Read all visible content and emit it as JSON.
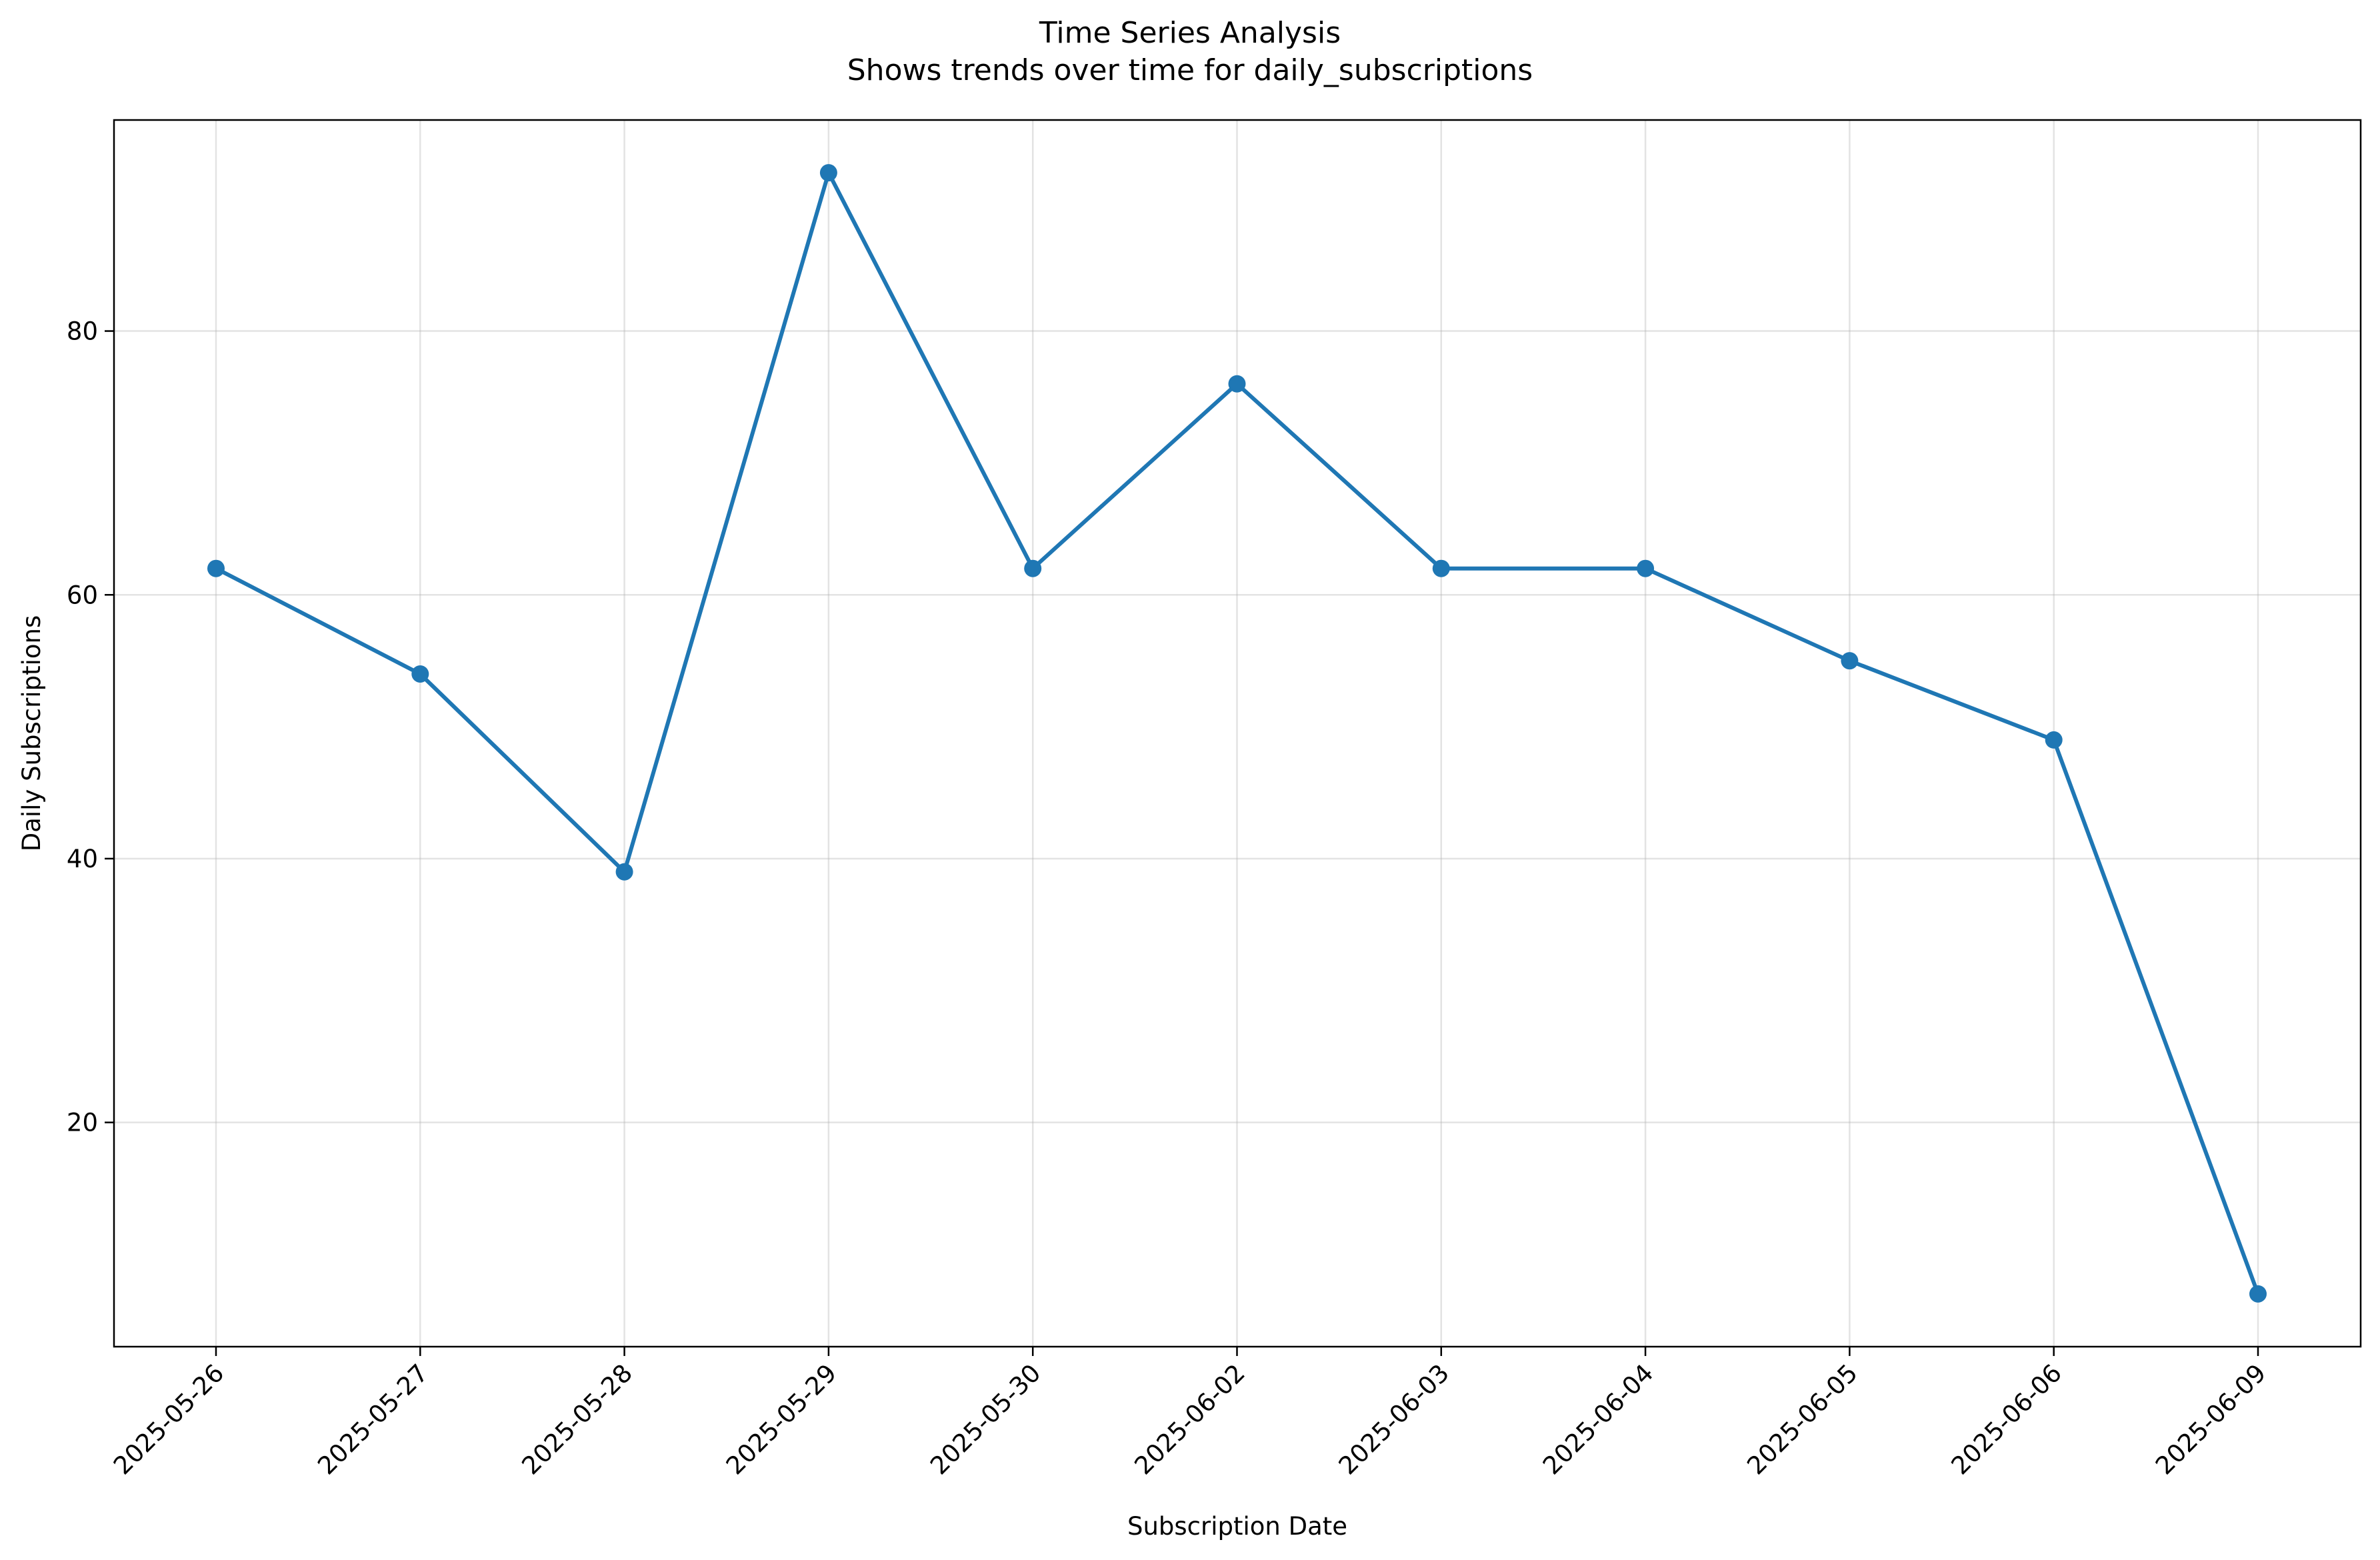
{
  "chart_data": {
    "type": "line",
    "title": "Time Series Analysis",
    "subtitle": "Shows trends over time for daily_subscriptions",
    "xlabel": "Subscription Date",
    "ylabel": "Daily Subscriptions",
    "categories": [
      "2025-05-26",
      "2025-05-27",
      "2025-05-28",
      "2025-05-29",
      "2025-05-30",
      "2025-06-02",
      "2025-06-03",
      "2025-06-04",
      "2025-06-05",
      "2025-06-06",
      "2025-06-09"
    ],
    "series": [
      {
        "values": [
          62,
          54,
          39,
          92,
          62,
          76,
          62,
          62,
          55,
          49,
          7
        ],
        "color": "#1f77b4",
        "marker": "circle"
      }
    ],
    "ylim": [
      3,
      96
    ],
    "yticks": [
      20,
      40,
      60,
      80
    ],
    "grid": true,
    "legend": false
  }
}
